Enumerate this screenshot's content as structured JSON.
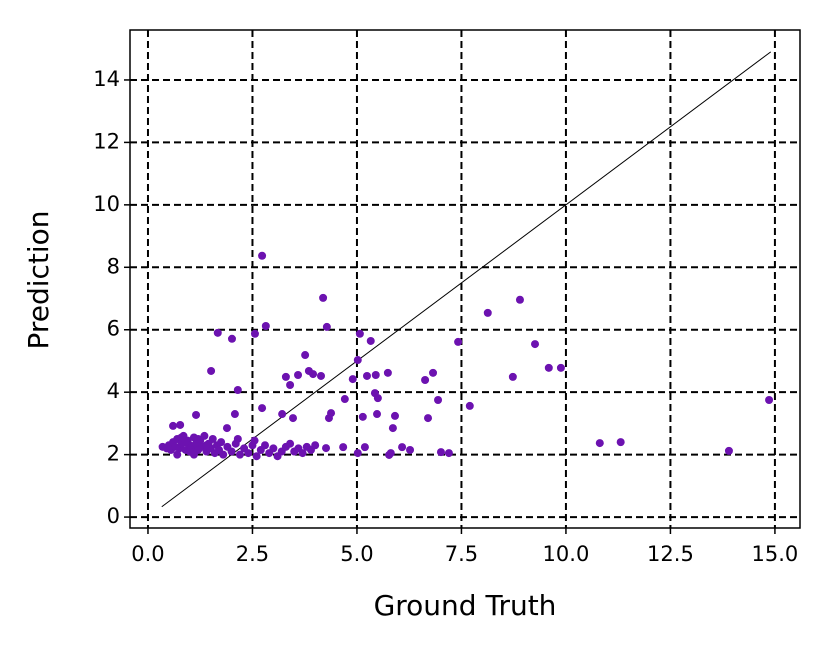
{
  "chart_data": {
    "type": "scatter",
    "x_label": "Ground Truth",
    "y_label": "Prediction",
    "xlim": [
      -0.43,
      15.6
    ],
    "ylim": [
      -0.35,
      15.6
    ],
    "xticks": [
      {
        "value": 0,
        "label": "0.0"
      },
      2.5,
      {
        "value": 5,
        "label": "5.0"
      },
      7.5,
      {
        "value": 10,
        "label": "10.0"
      },
      12.5,
      {
        "value": 15,
        "label": "15.0"
      }
    ],
    "yticks": [
      0,
      2,
      4,
      6,
      8,
      10,
      12,
      14
    ],
    "grid": true,
    "reference_line": {
      "x": [
        0.33,
        14.9
      ],
      "y": [
        0.33,
        14.9
      ]
    },
    "series": [
      {
        "color": "#6c12b0",
        "x": [
          2.73,
          4.19,
          8.9,
          8.13,
          2.82,
          4.28,
          1.67,
          2.56,
          5.07,
          2.01,
          5.33,
          7.42,
          9.26,
          3.76,
          5.02,
          9.59,
          9.88,
          1.51,
          3.85,
          3.95,
          3.59,
          3.3,
          4.14,
          4.9,
          5.24,
          5.45,
          5.74,
          6.82,
          6.63,
          8.73,
          3.4,
          2.15,
          14.86,
          5.43,
          4.71,
          6.94,
          5.5,
          7.7,
          2.73,
          4.38,
          4.33,
          5.48,
          5.14,
          5.91,
          3.21,
          2.08,
          1.15,
          3.47,
          6.7,
          1.89,
          5.86,
          10.81,
          11.31,
          13.9,
          6.08,
          6.27,
          7.01,
          7.2,
          5.02,
          5.19,
          5.81,
          5.77,
          4.67,
          4.26,
          0.77,
          0.6,
          0.35,
          0.45,
          0.5,
          0.55,
          0.6,
          0.65,
          0.7,
          0.75,
          0.8,
          0.85,
          0.9,
          0.95,
          1.0,
          1.05,
          1.1,
          1.15,
          1.2,
          1.25,
          1.3,
          1.35,
          1.4,
          1.45,
          1.5,
          1.55,
          1.6,
          1.65,
          1.7,
          1.75,
          1.8,
          1.9,
          2.0,
          2.1,
          2.2,
          2.3,
          2.4,
          2.5,
          2.6,
          2.7,
          2.8,
          2.9,
          3.0,
          3.1,
          3.2,
          3.3,
          3.4,
          3.5,
          3.6,
          3.7,
          3.8,
          3.9,
          4.0,
          1.0,
          0.9,
          1.2,
          1.4,
          0.7,
          2.55,
          2.15,
          1.1,
          0.8
        ],
        "values": [
          8.37,
          7.02,
          6.96,
          6.54,
          6.12,
          6.09,
          5.9,
          5.87,
          5.87,
          5.71,
          5.64,
          5.61,
          5.54,
          5.19,
          5.03,
          4.78,
          4.78,
          4.68,
          4.68,
          4.58,
          4.55,
          4.49,
          4.52,
          4.42,
          4.52,
          4.55,
          4.62,
          4.62,
          4.39,
          4.49,
          4.23,
          4.07,
          3.75,
          3.97,
          3.78,
          3.75,
          3.81,
          3.56,
          3.49,
          3.33,
          3.17,
          3.3,
          3.21,
          3.24,
          3.3,
          3.3,
          3.27,
          3.17,
          3.17,
          2.85,
          2.85,
          2.37,
          2.4,
          2.12,
          2.24,
          2.15,
          2.08,
          2.05,
          2.05,
          2.24,
          2.05,
          1.99,
          2.24,
          2.21,
          2.95,
          2.92,
          2.25,
          2.2,
          2.3,
          2.15,
          2.4,
          2.25,
          2.5,
          2.2,
          2.35,
          2.6,
          2.15,
          2.45,
          2.3,
          2.2,
          2.55,
          2.35,
          2.15,
          2.45,
          2.25,
          2.6,
          2.1,
          2.35,
          2.2,
          2.5,
          2.05,
          2.3,
          2.15,
          2.4,
          2.0,
          2.25,
          2.1,
          2.35,
          2.0,
          2.2,
          2.05,
          2.3,
          1.95,
          2.15,
          2.3,
          2.05,
          2.2,
          1.95,
          2.1,
          2.25,
          2.35,
          2.1,
          2.2,
          2.05,
          2.25,
          2.15,
          2.3,
          2.1,
          2.4,
          2.5,
          2.3,
          2.0,
          2.45,
          2.5,
          2.0,
          2.55
        ]
      }
    ]
  }
}
